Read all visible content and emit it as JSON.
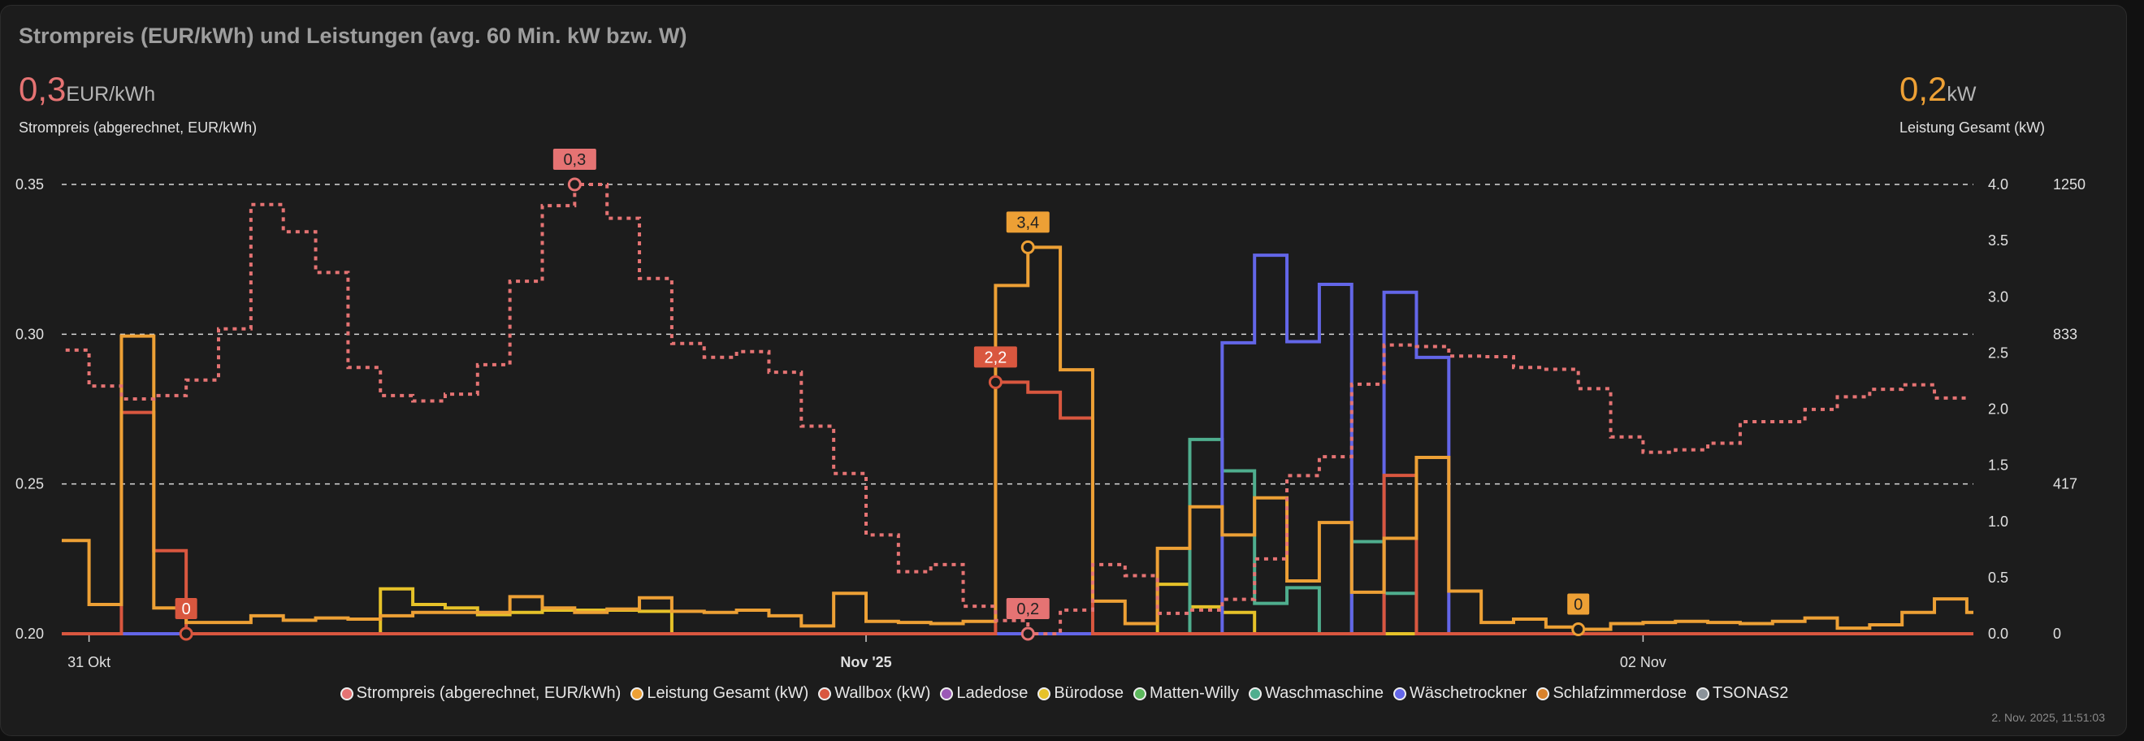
{
  "card": {
    "title": "Strompreis (EUR/kWh) und Leistungen (avg. 60 Min. kW bzw. W)",
    "left_stat": {
      "value": "0,3",
      "unit": "EUR/kWh",
      "label": "Strompreis (abgerechnet, EUR/kWh)",
      "color": "#e57373"
    },
    "right_stat": {
      "value": "0,2",
      "unit": "kW",
      "label": "Leistung Gesamt (kW)",
      "color": "#eda035"
    },
    "timestamp": "2. Nov. 2025, 11:51:03"
  },
  "chart_data": {
    "type": "line",
    "step": true,
    "x_unit": "hours since 31 Okt 00:00",
    "x_start": -1,
    "xlim": [
      -1,
      58.05
    ],
    "x_ticks": [
      {
        "x": 0,
        "label": "31 Okt",
        "bold": false
      },
      {
        "x": 24,
        "label": "Nov '25",
        "bold": true
      },
      {
        "x": 48,
        "label": "02 Nov",
        "bold": false
      }
    ],
    "y_left": {
      "ylim": [
        0.2,
        0.35
      ],
      "ticks": [
        "0.35",
        "0.30",
        "0.25",
        "0.20"
      ],
      "values": [
        0.35,
        0.3,
        0.25,
        0.2
      ]
    },
    "y_right": {
      "ylim": [
        0,
        4.0
      ],
      "ticks": [
        "4.0",
        "3.5",
        "3.0",
        "2.5",
        "2.0",
        "1.5",
        "1.0",
        "0.5",
        "0.0"
      ],
      "values": [
        4.0,
        3.5,
        3.0,
        2.5,
        2.0,
        1.5,
        1.0,
        0.5,
        0.0
      ]
    },
    "y_right2": {
      "ylim": [
        0,
        1250
      ],
      "ticks": [
        "1250",
        "833",
        "417",
        "0"
      ],
      "values": [
        1250,
        833,
        417,
        0
      ]
    },
    "grid": true,
    "legend_position": "bottom",
    "series": [
      {
        "name": "Strompreis (abgerechnet, EUR/kWh)",
        "color": "#e57373",
        "axis": "left",
        "dashed": true,
        "values": [
          0.2947,
          0.2827,
          0.2784,
          0.2795,
          0.2847,
          0.3018,
          0.3433,
          0.3342,
          0.3206,
          0.2889,
          0.2795,
          0.2777,
          0.28,
          0.2898,
          0.3177,
          0.3429,
          0.35,
          0.3387,
          0.3186,
          0.2969,
          0.2923,
          0.2942,
          0.2873,
          0.2693,
          0.2535,
          0.233,
          0.2207,
          0.2231,
          0.2092,
          0.2044,
          0.2,
          0.2079,
          0.2231,
          0.2194,
          0.2068,
          0.2079,
          0.2115,
          0.225,
          0.2528,
          0.2591,
          0.2833,
          0.2964,
          0.2959,
          0.2927,
          0.2925,
          0.2889,
          0.2883,
          0.2818,
          0.2657,
          0.2606,
          0.2614,
          0.2636,
          0.2708,
          0.2708,
          0.2749,
          0.2791,
          0.2816,
          0.2831,
          0.2787
        ]
      },
      {
        "name": "Leistung Gesamt (kW)",
        "color": "#eda035",
        "axis": "right",
        "values": [
          0.83,
          0.26,
          2.65,
          0.23,
          0.1,
          0.1,
          0.16,
          0.12,
          0.14,
          0.13,
          0.16,
          0.19,
          0.19,
          0.19,
          0.33,
          0.23,
          0.19,
          0.22,
          0.32,
          0.2,
          0.19,
          0.21,
          0.16,
          0.07,
          0.36,
          0.11,
          0.1,
          0.09,
          0.11,
          3.1,
          3.44,
          2.35,
          0.29,
          0.09,
          0.76,
          1.13,
          0.88,
          1.21,
          0.47,
          0.99,
          0.37,
          0.85,
          1.57,
          0.38,
          0.1,
          0.13,
          0.06,
          0.04,
          0.09,
          0.1,
          0.11,
          0.1,
          0.09,
          0.11,
          0.14,
          0.05,
          0.08,
          0.19,
          0.31,
          0.19
        ]
      },
      {
        "name": "Wallbox (kW)",
        "color": "#d9573f",
        "axis": "right",
        "values": [
          0,
          0,
          1.97,
          0.74,
          0,
          0,
          0,
          0,
          0,
          0,
          0,
          0,
          0,
          0,
          0,
          0,
          0,
          0,
          0,
          0,
          0,
          0,
          0,
          0,
          0,
          0,
          0,
          0,
          0,
          2.24,
          2.15,
          1.92,
          0,
          0,
          0,
          0,
          0,
          0,
          0,
          0,
          0,
          1.41,
          0,
          0,
          0,
          0,
          0,
          0,
          0,
          0,
          0,
          0,
          0,
          0,
          0,
          0,
          0,
          0,
          0,
          0
        ]
      },
      {
        "name": "Ladedose",
        "color": "#9b59b6",
        "axis": "right",
        "values": []
      },
      {
        "name": "Bürodose",
        "color": "#e6c229",
        "axis": "right",
        "values": [
          0,
          0,
          0,
          0,
          0,
          0,
          0,
          0,
          0,
          0,
          0.4,
          0.26,
          0.23,
          0.17,
          0.19,
          0.21,
          0.21,
          0.21,
          0.2,
          0,
          0,
          0,
          0,
          0,
          0,
          0,
          0,
          0,
          0,
          0,
          0,
          0,
          0,
          0,
          0.44,
          0.24,
          0.19,
          0,
          0,
          0,
          0,
          0,
          0,
          0,
          0,
          0,
          0,
          0,
          0,
          0,
          0,
          0,
          0,
          0,
          0,
          0,
          0,
          0,
          0,
          0
        ]
      },
      {
        "name": "Matten-Willy",
        "color": "#5cb85c",
        "axis": "right",
        "values": [
          0,
          0,
          0,
          0,
          0,
          0,
          0,
          0,
          0,
          0,
          0,
          0,
          0,
          0,
          0,
          0,
          0
        ]
      },
      {
        "name": "Waschmaschine",
        "color": "#4fae8e",
        "axis": "right",
        "values": [
          0,
          0,
          0,
          0,
          0,
          0,
          0,
          0,
          0,
          0,
          0,
          0,
          0,
          0,
          0,
          0,
          0,
          0,
          0,
          0,
          0,
          0,
          0,
          0,
          0,
          0,
          0,
          0,
          0,
          0,
          0,
          0,
          0,
          0,
          0,
          1.73,
          1.45,
          0.27,
          0.41,
          0,
          0.82,
          0.36,
          0,
          0,
          0,
          0,
          0,
          0,
          0,
          0,
          0,
          0,
          0,
          0,
          0,
          0,
          0,
          0,
          0,
          0
        ]
      },
      {
        "name": "Wäschetrockner",
        "color": "#6366e8",
        "axis": "right",
        "values": [
          0,
          0,
          0,
          0,
          0,
          0,
          0,
          0,
          0,
          0,
          0,
          0,
          0,
          0,
          0,
          0,
          0,
          0,
          0,
          0,
          0,
          0,
          0,
          0,
          0,
          0,
          0,
          0,
          0,
          0,
          0,
          0,
          0,
          0,
          0,
          0,
          2.59,
          3.37,
          2.6,
          3.11,
          0,
          3.04,
          2.46,
          0,
          0,
          0,
          0,
          0,
          0,
          0,
          0,
          0,
          0,
          0,
          0,
          0,
          0,
          0,
          0,
          0
        ]
      },
      {
        "name": "Schlafzimmerdose",
        "color": "#d9822b",
        "axis": "right",
        "values": []
      },
      {
        "name": "TSONAS2",
        "color": "#8a9299",
        "axis": "right",
        "x_start": 15,
        "values": [
          0,
          0,
          0,
          0,
          0,
          0,
          0,
          0,
          0,
          0,
          0,
          0,
          0,
          0,
          0,
          0,
          0,
          0,
          0,
          0,
          0,
          0,
          0,
          0,
          0,
          0,
          0,
          0,
          0,
          0,
          0,
          0,
          0,
          0,
          0,
          0,
          0,
          0,
          0,
          0,
          0,
          0,
          0,
          0
        ]
      }
    ],
    "annotations": [
      {
        "series": 0,
        "x": 15,
        "y": 0.35,
        "label": "0,3",
        "text_color": "#222222"
      },
      {
        "series": 0,
        "x": 29,
        "y": 0.2,
        "label": "0,2",
        "text_color": "#222222"
      },
      {
        "series": 1,
        "x": 29,
        "y": 3.44,
        "label": "3,4",
        "text_color": "#222222"
      },
      {
        "series": 1,
        "x": 46,
        "y": 0.04,
        "label": "0",
        "text_color": "#222222"
      },
      {
        "series": 2,
        "x": 28,
        "y": 2.24,
        "label": "2,2",
        "text_color": "#ffffff"
      },
      {
        "series": 2,
        "x": 3,
        "y": 0,
        "label": "0",
        "text_color": "#ffffff"
      }
    ]
  }
}
